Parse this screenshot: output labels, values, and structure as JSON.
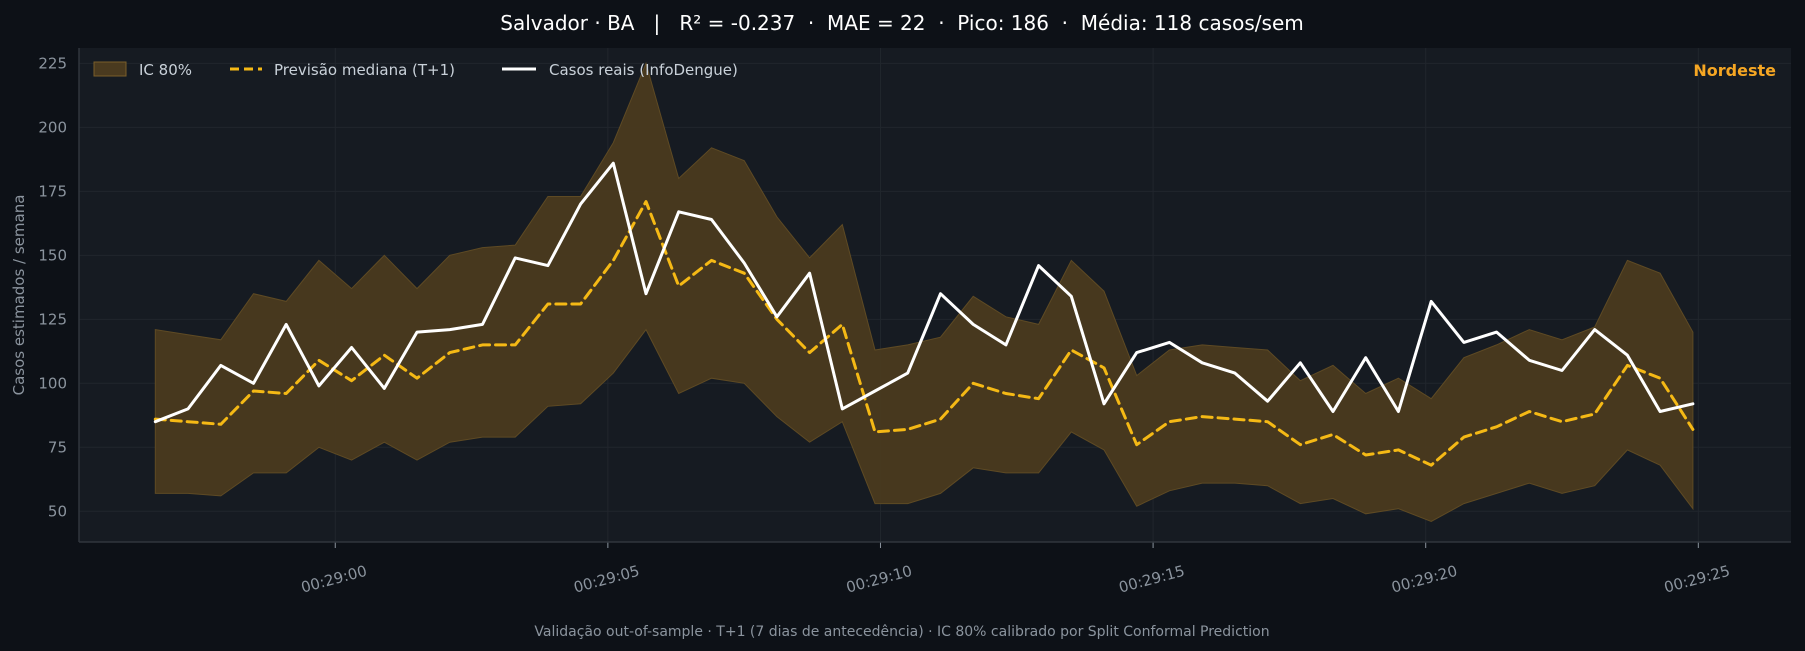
{
  "colors": {
    "page_bg": "#0d1117",
    "plot_bg": "#161b22",
    "grid": "#21262d",
    "axis": "#30363d",
    "tick_text": "#8b949e",
    "title_text": "#ffffff",
    "band": "#4a3a1f",
    "median": "#f5b915",
    "actual": "#ffffff",
    "region_tag": "#f5a623",
    "footer_text": "#8b949e"
  },
  "chart_data": {
    "type": "line",
    "title": "Salvador · BA   |   R² = -0.237  ·  MAE = 22  ·  Pico: 186  ·  Média: 118 casos/sem",
    "ylabel": "Casos estimados / semana",
    "xlabel": "",
    "region_tag": "Nordeste",
    "footer": "Validação out-of-sample · T+1 (7 dias de antecedência) · IC 80% calibrado por Split Conformal Prediction",
    "x_range_seconds": [
      55.3,
      86.7
    ],
    "x_ticks": [
      "00:29:00",
      "00:29:05",
      "00:29:10",
      "00:29:15",
      "00:29:20",
      "00:29:25"
    ],
    "x_tick_seconds": [
      60,
      65,
      70,
      75,
      80,
      85
    ],
    "ylim": [
      38,
      231
    ],
    "y_ticks": [
      50,
      75,
      100,
      125,
      150,
      175,
      200,
      225
    ],
    "grid": true,
    "legend_position": "top-left",
    "legend": [
      "IC 80%",
      "Previsão mediana (T+1)",
      "Casos reais (InfoDengue)"
    ],
    "x_seconds": [
      56.7,
      57.3,
      57.9,
      58.5,
      59.1,
      59.7,
      60.3,
      60.9,
      61.5,
      62.1,
      62.7,
      63.3,
      63.9,
      64.5,
      65.1,
      65.7,
      66.3,
      66.9,
      67.5,
      68.1,
      68.7,
      69.3,
      69.9,
      70.5,
      71.1,
      71.7,
      72.3,
      72.9,
      73.5,
      74.1,
      74.7,
      75.3,
      75.9,
      76.5,
      77.1,
      77.7,
      78.3,
      78.9,
      79.5,
      80.1,
      80.7,
      81.3,
      81.9,
      82.5,
      83.1,
      83.7,
      84.3,
      84.9
    ],
    "series": [
      {
        "name": "Casos reais (InfoDengue)",
        "style": "solid",
        "values": [
          85,
          90,
          107,
          100,
          123,
          99,
          114,
          98,
          120,
          121,
          123,
          149,
          146,
          170,
          186,
          135,
          167,
          164,
          147,
          126,
          143,
          90,
          97,
          104,
          135,
          123,
          115,
          146,
          134,
          92,
          112,
          116,
          108,
          104,
          93,
          108,
          89,
          110,
          89,
          132,
          116,
          120,
          109,
          105,
          121,
          111,
          89,
          92
        ]
      },
      {
        "name": "Previsão mediana (T+1)",
        "style": "dashed",
        "values": [
          86,
          85,
          84,
          97,
          96,
          109,
          101,
          111,
          102,
          112,
          115,
          115,
          131,
          131,
          148,
          171,
          138,
          148,
          143,
          125,
          112,
          123,
          81,
          82,
          86,
          100,
          96,
          94,
          113,
          106,
          76,
          85,
          87,
          86,
          85,
          76,
          80,
          72,
          74,
          68,
          79,
          83,
          89,
          85,
          88,
          107,
          102,
          82
        ]
      }
    ],
    "band": {
      "name": "IC 80%",
      "upper": [
        121,
        119,
        117,
        135,
        132,
        148,
        137,
        150,
        137,
        150,
        153,
        154,
        173,
        173,
        194,
        225,
        180,
        192,
        187,
        165,
        149,
        162,
        113,
        115,
        118,
        134,
        126,
        123,
        148,
        136,
        103,
        113,
        115,
        114,
        113,
        101,
        107,
        96,
        102,
        94,
        110,
        115,
        121,
        117,
        122,
        148,
        143,
        120
      ],
      "lower": [
        57,
        57,
        56,
        65,
        65,
        75,
        70,
        77,
        70,
        77,
        79,
        79,
        91,
        92,
        104,
        121,
        96,
        102,
        100,
        87,
        77,
        85,
        53,
        53,
        57,
        67,
        65,
        65,
        81,
        74,
        52,
        58,
        61,
        61,
        60,
        53,
        55,
        49,
        51,
        46,
        53,
        57,
        61,
        57,
        60,
        74,
        68,
        51
      ]
    }
  }
}
